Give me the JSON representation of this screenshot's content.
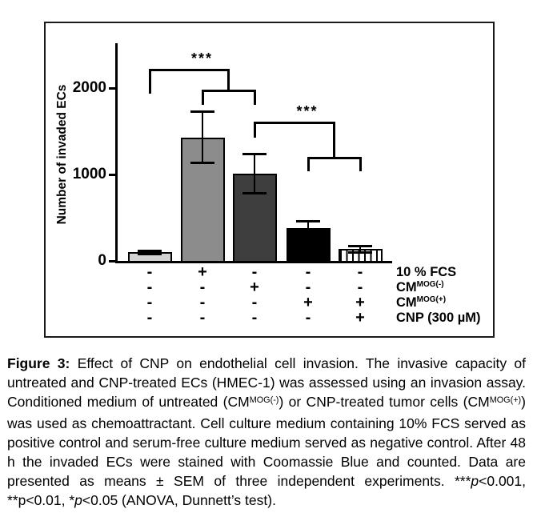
{
  "chart_data": {
    "type": "bar",
    "title": "",
    "xlabel": "",
    "ylabel": "Number of invaded ECs",
    "ylim": [
      0,
      2500
    ],
    "yticks": [
      0,
      1000,
      2000
    ],
    "grid": false,
    "axis_color": "#000000",
    "error_bar_color": "#000000",
    "bars": [
      {
        "value": 100,
        "sem": 25,
        "fill": "#d2d2d2",
        "pattern": "solid"
      },
      {
        "value": 1430,
        "sem": 300,
        "fill": "#8c8c8c",
        "pattern": "solid"
      },
      {
        "value": 1010,
        "sem": 230,
        "fill": "#3e3e3e",
        "pattern": "solid"
      },
      {
        "value": 380,
        "sem": 80,
        "fill": "#000000",
        "pattern": "solid"
      },
      {
        "value": 135,
        "sem": 40,
        "fill": "#ffffff",
        "pattern": "vertical-hatch"
      }
    ],
    "treatments": [
      {
        "name": "10 % FCS",
        "sup": "",
        "per_bar": [
          "-",
          "+",
          "-",
          "-",
          "-"
        ]
      },
      {
        "name": "CM",
        "sup": "MOG(-)",
        "per_bar": [
          "-",
          "-",
          "+",
          "-",
          "-"
        ]
      },
      {
        "name": "CM",
        "sup": "MOG(+)",
        "per_bar": [
          "-",
          "-",
          "-",
          "+",
          "+"
        ]
      },
      {
        "name": "CNP (300 µM)",
        "sup": "",
        "per_bar": [
          "-",
          "-",
          "-",
          "-",
          "+"
        ]
      }
    ],
    "significance_brackets": [
      {
        "label": "***",
        "left_bar": 0,
        "group_bars": [
          1,
          2
        ]
      },
      {
        "label": "***",
        "left_bar": 2,
        "group_bars": [
          3,
          4
        ]
      }
    ]
  },
  "caption": {
    "runs": [
      {
        "text": "Figure 3:",
        "bold": true
      },
      {
        "text": " Effect of CNP on endothelial cell invasion. The invasive capacity of untreated and CNP-treated ECs (HMEC-1) was assessed using an invasion assay. Conditioned medium of untreated (CM"
      },
      {
        "text": "MOG(-)",
        "sup": true
      },
      {
        "text": ") or CNP-treated tumor cells (CM"
      },
      {
        "text": "MOG(+)",
        "sup": true
      },
      {
        "text": ") was used as chemoattractant. Cell culture medium containing 10% FCS served as positive control and serum-free culture medium served as negative control. After 48 h the invaded ECs were stained with Coomassie Blue and counted. Data are presented as means ± SEM of three independent experiments. ***"
      },
      {
        "text": "p",
        "italic": true
      },
      {
        "text": "<0.001, **p<0.01, *"
      },
      {
        "text": "p",
        "italic": true
      },
      {
        "text": "<0.05 (ANOVA, Dunnett’s test)."
      }
    ]
  }
}
